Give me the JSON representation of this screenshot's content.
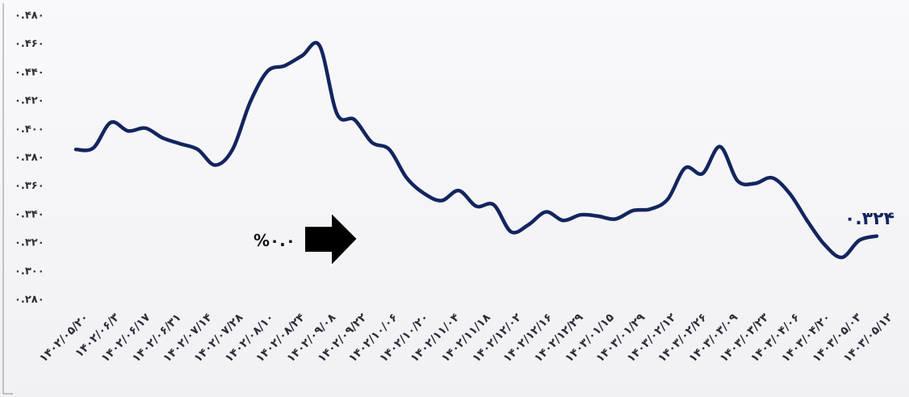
{
  "chart_data": {
    "type": "line",
    "title": "",
    "xlabel": "",
    "ylabel": "",
    "ylim": [
      0.28,
      0.48
    ],
    "yticks": [
      "۰.۲۸۰",
      "۰.۳۰۰",
      "۰.۳۲۰",
      "۰.۳۴۰",
      "۰.۳۶۰",
      "۰.۳۸۰",
      "۰.۴۰۰",
      "۰.۴۲۰",
      "۰.۴۴۰",
      "۰.۴۶۰",
      "۰.۴۸۰"
    ],
    "ytick_values": [
      0.28,
      0.3,
      0.32,
      0.34,
      0.36,
      0.38,
      0.4,
      0.42,
      0.44,
      0.46,
      0.48
    ],
    "xtick_labels": [
      "۱۴۰۲/۰۵/۲۰",
      "۱۴۰۲/۰۶/۳",
      "۱۴۰۲/۰۶/۱۷",
      "۱۴۰۲/۰۶/۳۱",
      "۱۴۰۲/۰۷/۱۴",
      "۱۴۰۲/۰۷/۲۸",
      "۱۴۰۲/۰۸/۱۰",
      "۱۴۰۲/۰۸/۲۴",
      "۱۴۰۲/۰۹/۰۸",
      "۱۴۰۲/۰۹/۲۲",
      "۱۴۰۲/۱۰/۰۶",
      "۱۴۰۲/۱۰/۲۰",
      "۱۴۰۲/۱۱/۰۴",
      "۱۴۰۲/۱۱/۱۸",
      "۱۴۰۲/۱۲/۰۲",
      "۱۴۰۲/۱۲/۱۶",
      "۱۴۰۲/۱۲/۲۹",
      "۱۴۰۳/۰۱/۱۵",
      "۱۴۰۳/۰۱/۲۹",
      "۱۴۰۳/۰۲/۱۲",
      "۱۴۰۳/۰۲/۲۶",
      "۱۴۰۳/۰۳/۰۹",
      "۱۴۰۳/۰۳/۲۳",
      "۱۴۰۳/۰۴/۰۶",
      "۱۴۰۳/۰۴/۲۰",
      "۱۴۰۳/۰۵/۰۳",
      "۱۴۰۳/۰۵/۱۲"
    ],
    "grid": false,
    "series": [
      {
        "color": "#12255e",
        "values": [
          0.385,
          0.386,
          0.404,
          0.398,
          0.4,
          0.393,
          0.389,
          0.385,
          0.374,
          0.385,
          0.418,
          0.44,
          0.444,
          0.451,
          0.458,
          0.41,
          0.406,
          0.39,
          0.385,
          0.365,
          0.354,
          0.349,
          0.356,
          0.345,
          0.346,
          0.327,
          0.332,
          0.341,
          0.335,
          0.339,
          0.338,
          0.336,
          0.342,
          0.343,
          0.35,
          0.372,
          0.368,
          0.387,
          0.363,
          0.361,
          0.365,
          0.354,
          0.335,
          0.318,
          0.309,
          0.321,
          0.324
        ]
      }
    ],
    "end_label": "۰.۳۲۴",
    "arrow_label": "%۰.۰"
  }
}
